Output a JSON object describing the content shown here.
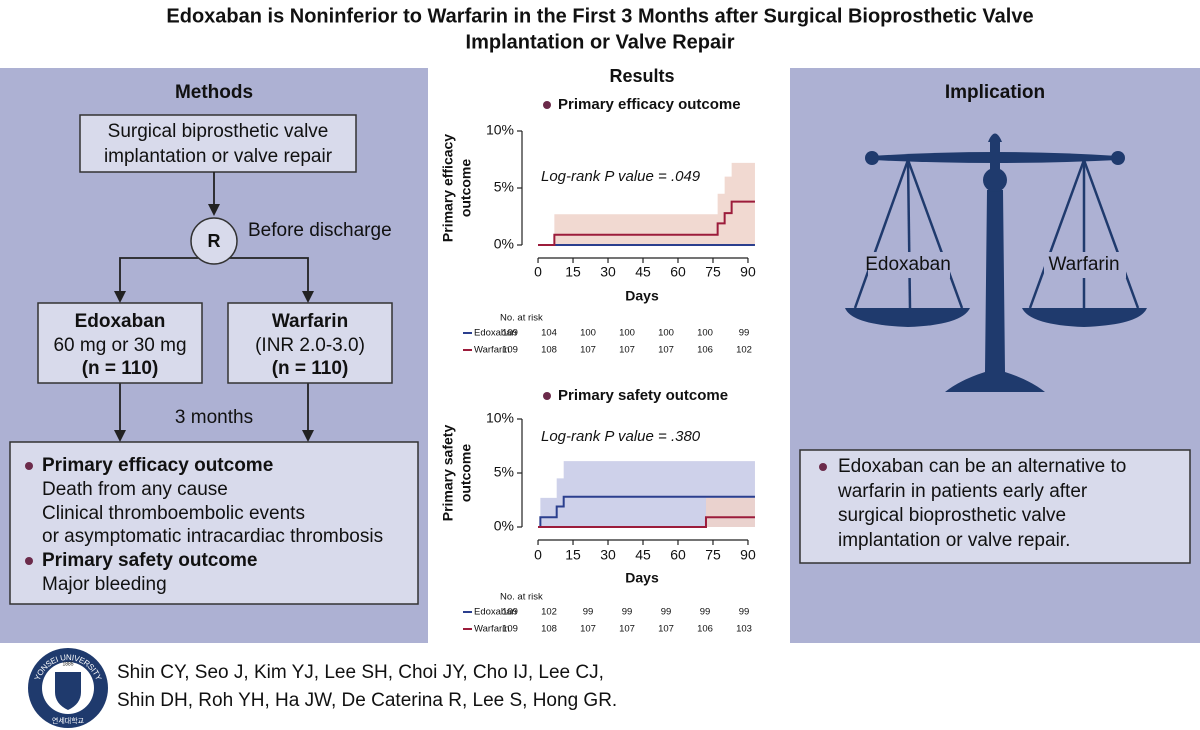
{
  "title": [
    "Edoxaban is Noninferior to Warfarin in the First 3 Months after Surgical Bioprosthetic Valve",
    "Implantation or Valve Repair"
  ],
  "methods": {
    "heading": "Methods",
    "start": [
      "Surgical biprosthetic valve",
      "implantation or valve repair"
    ],
    "randomization": "R",
    "timing": "Before discharge",
    "arms": [
      {
        "name": "Edoxaban",
        "dose": "60 mg or 30 mg",
        "n": "(n = 110)"
      },
      {
        "name": "Warfarin",
        "dose": "(INR 2.0-3.0)",
        "n": "(n = 110)"
      }
    ],
    "followup": "3 months",
    "outcomes": [
      {
        "name": "Primary efficacy outcome",
        "items": [
          "Death from any cause",
          "Clinical thromboembolic events",
          "or asymptomatic intracardiac thrombosis"
        ]
      },
      {
        "name": "Primary safety outcome",
        "items": [
          "Major bleeding"
        ]
      }
    ]
  },
  "results_heading": "Results",
  "chart_data": [
    {
      "type": "step",
      "title": "Primary efficacy outcome",
      "ylabel": [
        "Primary efficacy",
        "outcome"
      ],
      "xlabel": "Days",
      "annotation": "Log-rank P value = .049",
      "xlim": [
        -4,
        94
      ],
      "xticks": [
        0,
        15,
        30,
        45,
        60,
        75,
        90
      ],
      "ylim": [
        -1,
        10
      ],
      "yticks": [
        {
          "value": 0,
          "label": "0%"
        },
        {
          "value": 5,
          "label": "5%"
        },
        {
          "value": 10,
          "label": "10%"
        }
      ],
      "series": [
        {
          "name": "Edoxaban",
          "color": "#2b3f8e",
          "band_color": "#c6c9e6",
          "x": [
            0,
            93
          ],
          "values": [
            0,
            0
          ],
          "ci_upper": [
            0,
            0
          ]
        },
        {
          "name": "Warfarin",
          "color": "#9c1c3b",
          "band_color": "#efd2c9",
          "x": [
            0,
            7,
            77,
            80,
            83,
            93
          ],
          "values": [
            0,
            0.9,
            1.9,
            2.8,
            3.8,
            3.8
          ],
          "ci_upper": [
            0,
            2.7,
            4.5,
            6.0,
            7.2,
            7.2
          ]
        }
      ],
      "risk_table": {
        "label": "No. at risk",
        "rows": [
          {
            "name": "Edoxaban",
            "values": [
              109,
              104,
              100,
              100,
              100,
              100,
              99
            ]
          },
          {
            "name": "Warfarin",
            "values": [
              109,
              108,
              107,
              107,
              107,
              106,
              102
            ]
          }
        ]
      }
    },
    {
      "type": "step",
      "title": "Primary safety outcome",
      "ylabel": [
        "Primary safety",
        "outcome"
      ],
      "xlabel": "Days",
      "annotation": "Log-rank P value = .380",
      "xlim": [
        -4,
        94
      ],
      "xticks": [
        0,
        15,
        30,
        45,
        60,
        75,
        90
      ],
      "ylim": [
        -1,
        10
      ],
      "yticks": [
        {
          "value": 0,
          "label": "0%"
        },
        {
          "value": 5,
          "label": "5%"
        },
        {
          "value": 10,
          "label": "10%"
        }
      ],
      "series": [
        {
          "name": "Edoxaban",
          "color": "#2b3f8e",
          "band_color": "#c6c9e6",
          "x": [
            0,
            1,
            8,
            11,
            93
          ],
          "values": [
            0,
            0.9,
            1.9,
            2.8,
            2.8
          ],
          "ci_upper": [
            0,
            2.7,
            4.5,
            6.1,
            6.1
          ]
        },
        {
          "name": "Warfarin",
          "color": "#9c1c3b",
          "band_color": "#efd2c9",
          "x": [
            0,
            72,
            93
          ],
          "values": [
            0,
            0.9,
            0.9
          ],
          "ci_upper": [
            0,
            2.7,
            2.7
          ]
        }
      ],
      "risk_table": {
        "label": "No. at risk",
        "rows": [
          {
            "name": "Edoxaban",
            "values": [
              109,
              102,
              99,
              99,
              99,
              99,
              99
            ]
          },
          {
            "name": "Warfarin",
            "values": [
              109,
              108,
              107,
              107,
              107,
              106,
              103
            ]
          }
        ]
      }
    }
  ],
  "implication": {
    "heading": "Implication",
    "scale_labels": [
      "Edoxaban",
      "Warfarin"
    ],
    "statement": [
      "Edoxaban can be an alternative to",
      "warfarin in patients early after",
      "surgical bioprosthetic valve",
      "implantation or valve repair."
    ]
  },
  "logo": {
    "name": "YONSEI UNIVERSITY",
    "year": "1885",
    "korean": "연세대학교"
  },
  "authors": [
    "Shin CY, Seo J, Kim YJ, Lee SH, Choi JY, Cho IJ, Lee CJ,",
    "Shin DH, Roh YH, Ha JW, De Caterina R, Lee S, Hong GR."
  ]
}
